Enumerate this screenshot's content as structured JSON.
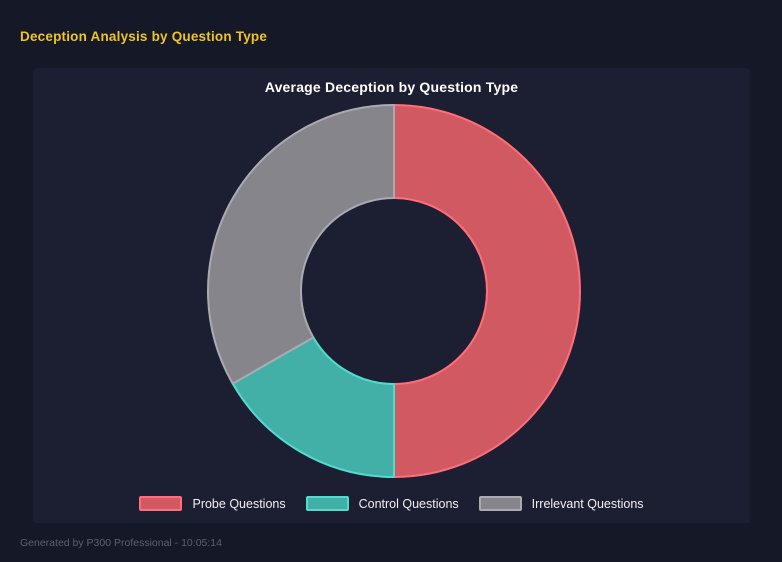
{
  "page": {
    "title": "Deception Analysis by Question Type",
    "footer": "Generated by P300 Professional - 10:05:14"
  },
  "chart_data": {
    "type": "pie",
    "variant": "doughnut",
    "title": "Average Deception by Question Type",
    "categories": [
      "Probe Questions",
      "Control Questions",
      "Irrelevant Questions"
    ],
    "values": [
      50,
      16.7,
      33.3
    ],
    "values_note": "percent share of circle, estimated from arc angles (no numeric labels shown)",
    "segment_ids": [
      "probe",
      "control",
      "irrelevant"
    ],
    "colors": [
      "#d15a62",
      "#43b0a8",
      "#85858b"
    ],
    "border_colors": [
      "#ff6e7a",
      "#52dccf",
      "#aaaab0"
    ],
    "start_angle_deg": 0,
    "direction": "clockwise",
    "cutout_percent": 50,
    "legend_position": "bottom",
    "grid": false
  },
  "colors": {
    "page_background": "#151826",
    "panel_background": "#1c1f31",
    "page_title": "#f0c420",
    "chart_title": "#ffffff",
    "legend_text": "#f0f0f3",
    "footer_text": "#5b6072"
  }
}
